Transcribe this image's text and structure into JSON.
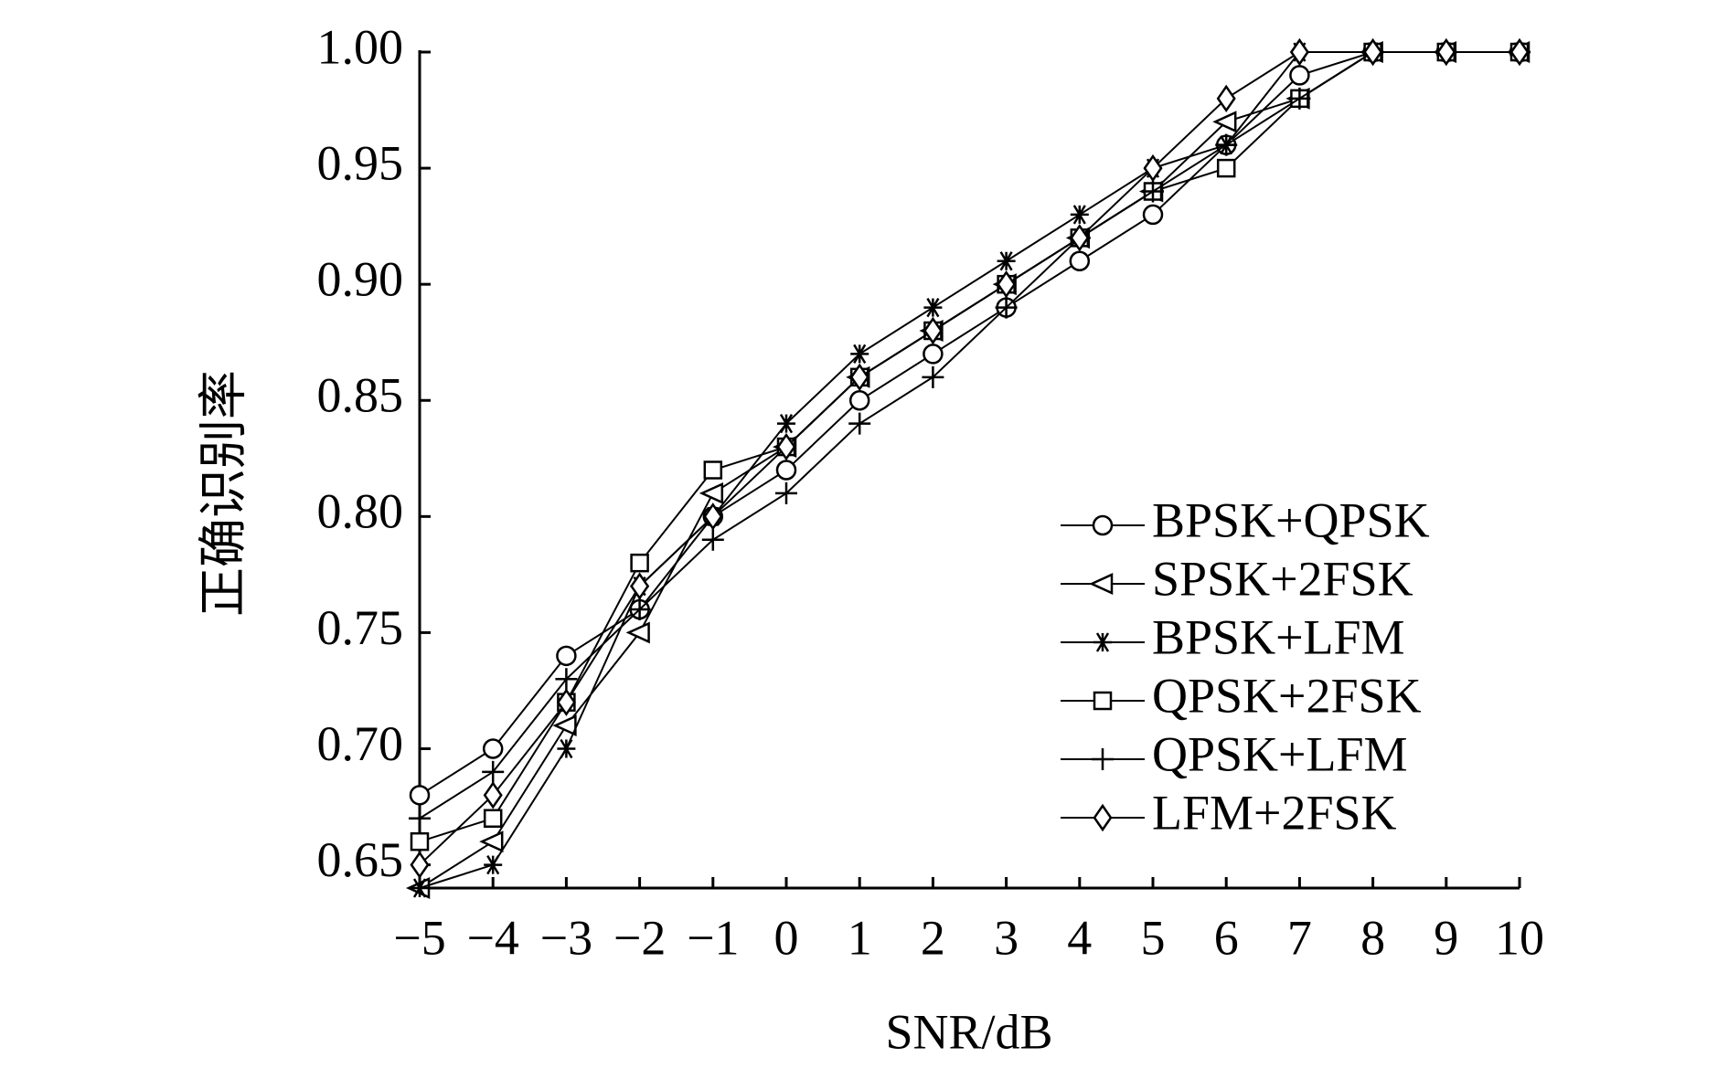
{
  "chart_data": {
    "type": "line",
    "x_label": "SNR/dB",
    "y_label": "正确识别率",
    "x": [
      -5,
      -4,
      -3,
      -2,
      -1,
      0,
      1,
      2,
      3,
      4,
      5,
      6,
      7,
      8,
      9,
      10
    ],
    "xlim": [
      -5,
      10
    ],
    "xticks": [
      {
        "value": -5,
        "label": "−5"
      },
      {
        "value": -4,
        "label": "−4"
      },
      {
        "value": -3,
        "label": "−3"
      },
      {
        "value": -2,
        "label": "−2"
      },
      {
        "value": -1,
        "label": "−1"
      },
      0,
      1,
      2,
      3,
      4,
      5,
      6,
      7,
      8,
      9,
      10
    ],
    "ylim": [
      0.64,
      1.0
    ],
    "yticks": [
      {
        "value": 0.65,
        "label": "0.65"
      },
      {
        "value": 0.7,
        "label": "0.70"
      },
      {
        "value": 0.75,
        "label": "0.75"
      },
      {
        "value": 0.8,
        "label": "0.80"
      },
      {
        "value": 0.85,
        "label": "0.85"
      },
      {
        "value": 0.9,
        "label": "0.90"
      },
      {
        "value": 0.95,
        "label": "0.95"
      },
      {
        "value": 1.0,
        "label": "1.00"
      }
    ],
    "grid": false,
    "legend": "right",
    "series": [
      {
        "name": "BPSK+QPSK",
        "color": "#000000",
        "marker": "circle",
        "values": [
          0.68,
          0.7,
          0.74,
          0.76,
          0.8,
          0.82,
          0.85,
          0.87,
          0.89,
          0.91,
          0.93,
          0.96,
          0.99,
          1.0,
          1.0,
          1.0
        ]
      },
      {
        "name": "SPSK+2FSK",
        "color": "#000000",
        "marker": "triangle-left",
        "values": [
          0.64,
          0.66,
          0.71,
          0.75,
          0.81,
          0.83,
          0.86,
          0.88,
          0.9,
          0.92,
          0.94,
          0.97,
          0.98,
          1.0,
          1.0,
          1.0
        ]
      },
      {
        "name": "BPSK+LFM",
        "color": "#000000",
        "marker": "star",
        "values": [
          0.64,
          0.65,
          0.7,
          0.77,
          0.8,
          0.84,
          0.87,
          0.89,
          0.91,
          0.93,
          0.95,
          0.96,
          1.0,
          1.0,
          1.0,
          1.0
        ]
      },
      {
        "name": "QPSK+2FSK",
        "color": "#000000",
        "marker": "square",
        "values": [
          0.66,
          0.67,
          0.72,
          0.78,
          0.82,
          0.83,
          0.86,
          0.88,
          0.9,
          0.92,
          0.94,
          0.95,
          0.98,
          1.0,
          1.0,
          1.0
        ]
      },
      {
        "name": "QPSK+LFM",
        "color": "#000000",
        "marker": "plus",
        "values": [
          0.67,
          0.69,
          0.73,
          0.76,
          0.79,
          0.81,
          0.84,
          0.86,
          0.89,
          0.92,
          0.94,
          0.96,
          0.98,
          1.0,
          1.0,
          1.0
        ]
      },
      {
        "name": "LFM+2FSK",
        "color": "#000000",
        "marker": "diamond",
        "values": [
          0.65,
          0.68,
          0.72,
          0.77,
          0.8,
          0.83,
          0.86,
          0.88,
          0.9,
          0.92,
          0.95,
          0.98,
          1.0,
          1.0,
          1.0,
          1.0
        ]
      }
    ]
  }
}
